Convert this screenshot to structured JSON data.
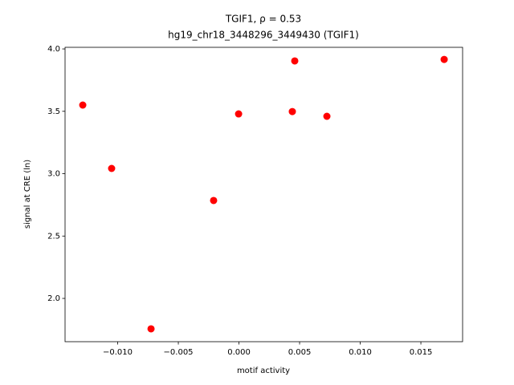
{
  "chart_data": {
    "type": "scatter",
    "title": "TGIF1, ρ = 0.53",
    "subtitle": "hg19_chr18_3448296_3449430 (TGIF1)",
    "x_label": "motif activity",
    "y_label": "signal at CRE (ln)",
    "color": "#ff0000",
    "x": [
      -0.01288,
      -0.0105,
      -0.00725,
      -0.00209,
      -3e-05,
      0.0044,
      0.0046,
      0.00725,
      0.01692
    ],
    "values": [
      3.55,
      3.042,
      1.756,
      2.785,
      3.479,
      3.498,
      3.904,
      3.46,
      3.916
    ],
    "xlim": [
      -0.01434,
      0.01844
    ],
    "ylim": [
      1.653,
      4.013
    ],
    "xticks": [
      {
        "value": -0.01,
        "label": "−0.010"
      },
      {
        "value": -0.005,
        "label": "−0.005"
      },
      {
        "value": 0,
        "label": "0.000"
      },
      {
        "value": 0.005,
        "label": "0.005"
      },
      {
        "value": 0.01,
        "label": "0.010"
      },
      {
        "value": 0.015,
        "label": "0.015"
      }
    ],
    "yticks": [
      {
        "value": 2,
        "label": "2.0"
      },
      2.5,
      {
        "value": 3,
        "label": "3.0"
      },
      3.5,
      {
        "value": 4,
        "label": "4.0"
      }
    ],
    "grid": false
  }
}
